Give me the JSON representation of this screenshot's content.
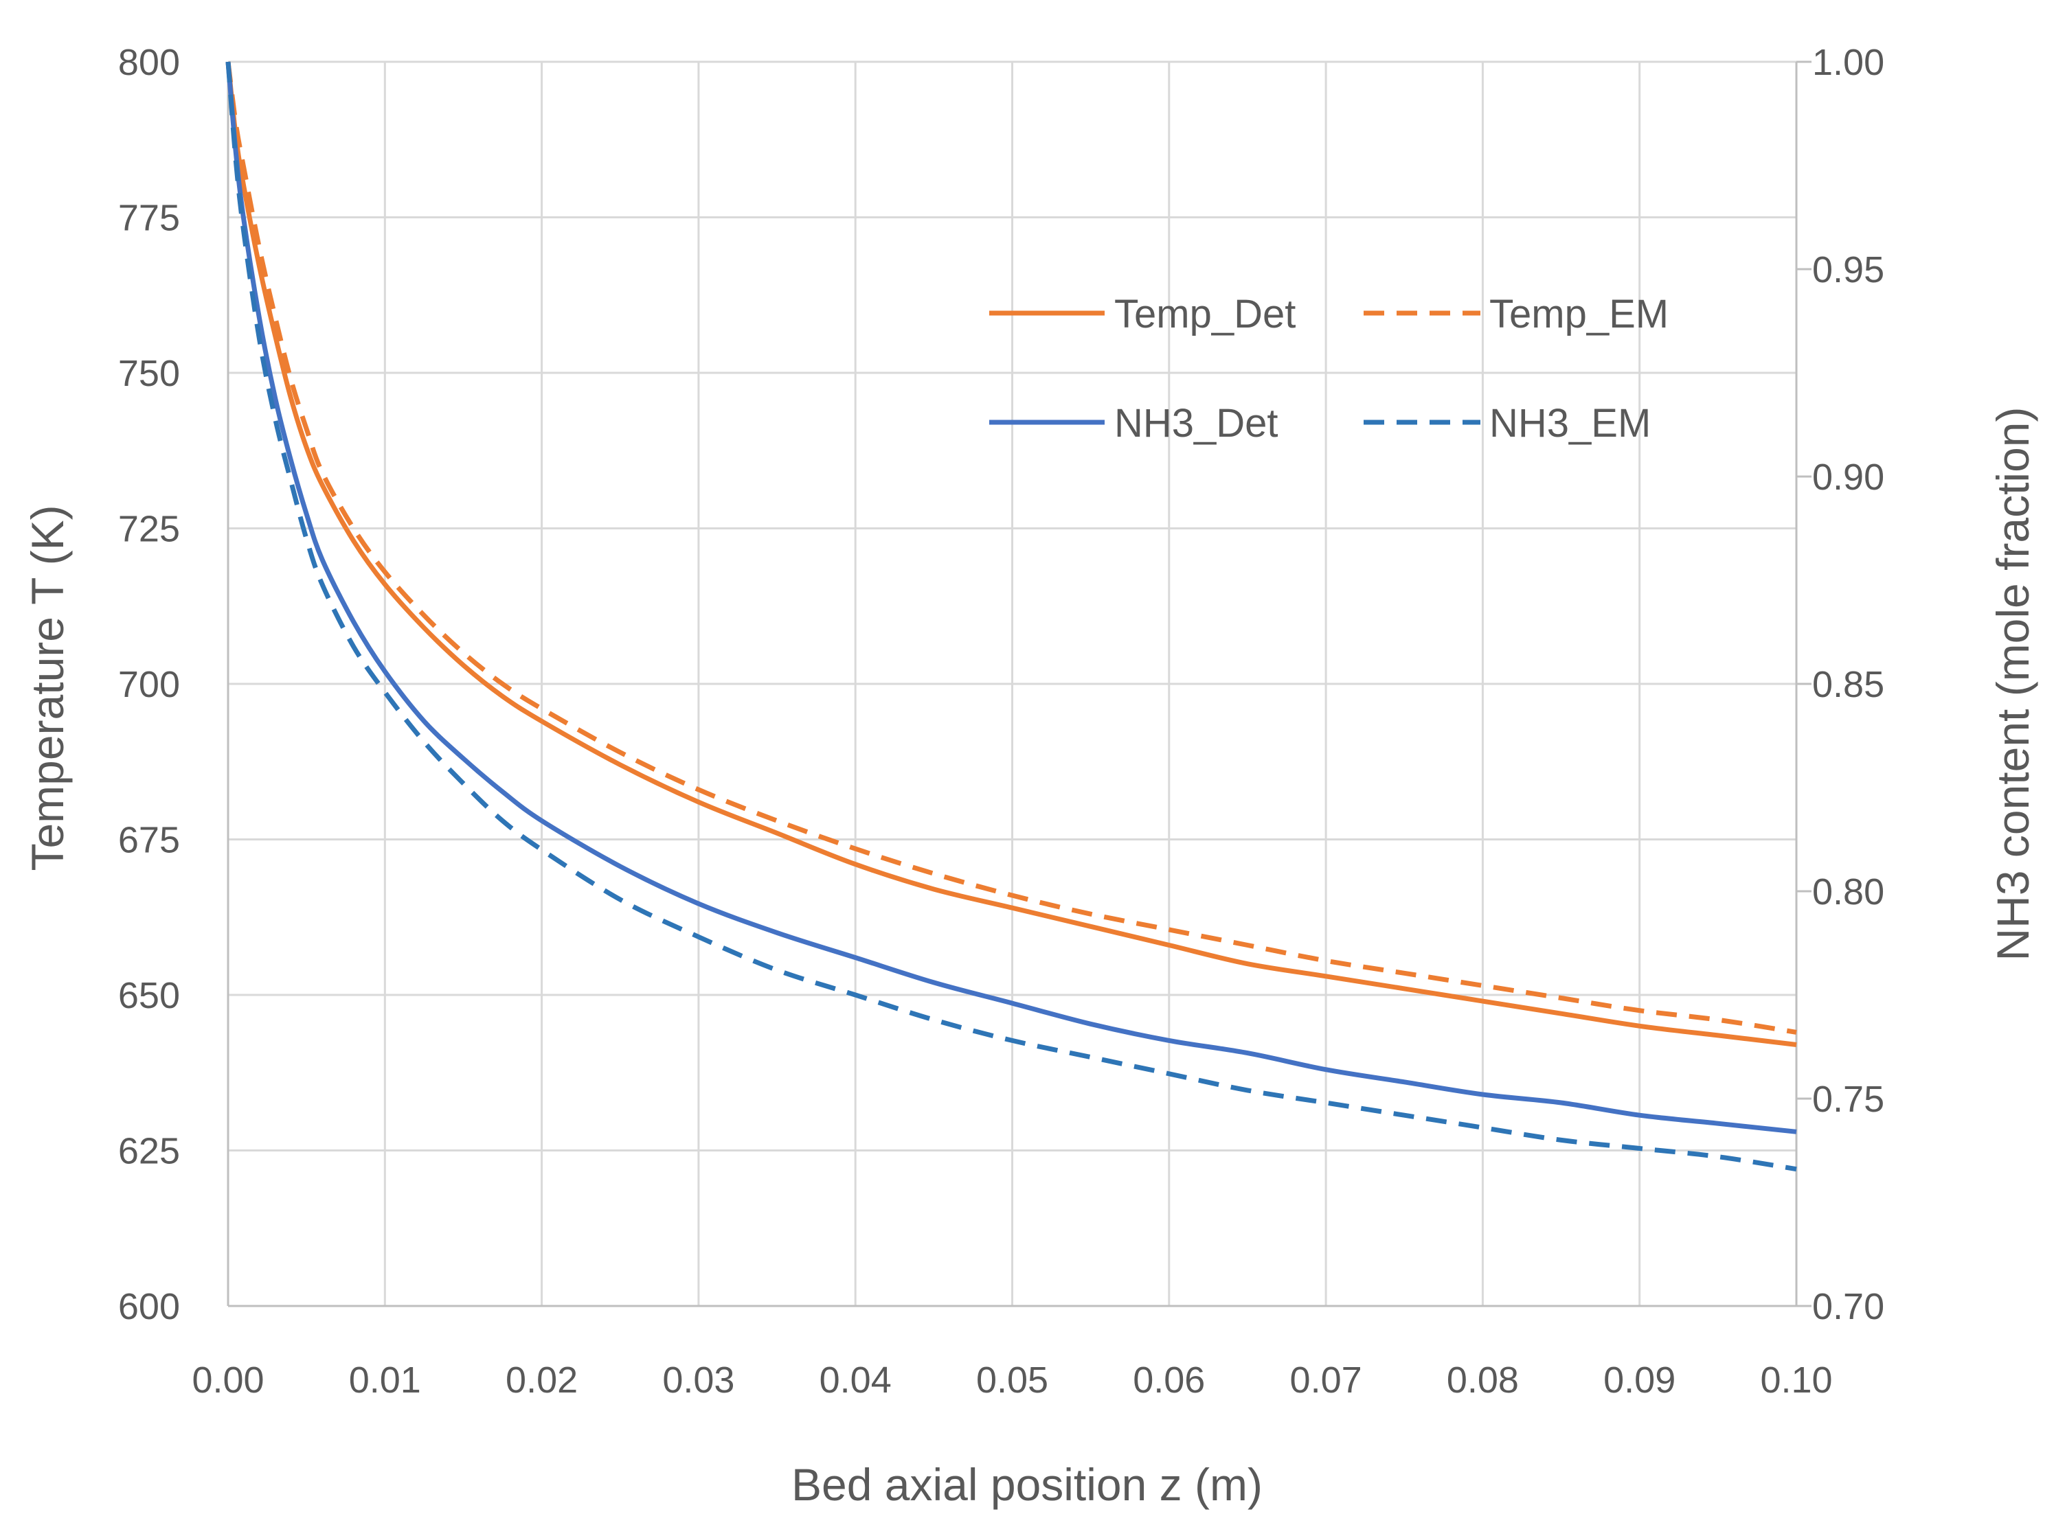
{
  "chart_data": {
    "type": "line",
    "title": "",
    "xlabel": "Bed axial position z (m)",
    "ylabel": "Temperature T (K)",
    "y2label": "NH3 content (mole fraction)",
    "xlim": [
      0,
      0.1
    ],
    "ylim": [
      600,
      800
    ],
    "y2lim": [
      0.7,
      1.0
    ],
    "x_ticks": [
      0,
      0.01,
      0.02,
      0.03,
      0.04,
      0.05,
      0.06,
      0.07,
      0.08,
      0.09,
      0.1
    ],
    "x_tick_labels": [
      "0.00",
      "0.01",
      "0.02",
      "0.03",
      "0.04",
      "0.05",
      "0.06",
      "0.07",
      "0.08",
      "0.09",
      "0.10"
    ],
    "y_ticks": [
      600,
      625,
      650,
      675,
      700,
      725,
      750,
      775,
      800
    ],
    "y_tick_labels": [
      "600",
      "625",
      "650",
      "675",
      "700",
      "725",
      "750",
      "775",
      "800"
    ],
    "y2_ticks": [
      0.7,
      0.75,
      0.8,
      0.85,
      0.9,
      0.95,
      1.0
    ],
    "y2_tick_labels": [
      "0.70",
      "0.75",
      "0.80",
      "0.85",
      "0.90",
      "0.95",
      "1.00"
    ],
    "grid": true,
    "legend_position": "top-right",
    "x": [
      0,
      0.0005,
      0.001,
      0.002,
      0.003,
      0.004,
      0.005,
      0.006,
      0.008,
      0.01,
      0.0125,
      0.015,
      0.0175,
      0.02,
      0.025,
      0.03,
      0.035,
      0.04,
      0.045,
      0.05,
      0.055,
      0.06,
      0.065,
      0.07,
      0.075,
      0.08,
      0.085,
      0.09,
      0.095,
      0.1
    ],
    "series": [
      {
        "name": "Temp_Det",
        "axis": "left",
        "color": "#ED7D31",
        "dash": "solid",
        "values": [
          800,
          788,
          780,
          767,
          756,
          746,
          738,
          732,
          723,
          716,
          709,
          703,
          698,
          694,
          687,
          681,
          676,
          671,
          667,
          664,
          661,
          658,
          655,
          653,
          651,
          649,
          647,
          645,
          643.5,
          642
        ]
      },
      {
        "name": "Temp_EM",
        "axis": "left",
        "color": "#ED7D31",
        "dash": "dashed",
        "values": [
          800,
          790,
          783,
          770,
          759,
          749,
          741,
          734,
          725,
          718,
          711,
          705,
          700,
          696,
          689,
          683,
          678,
          673.5,
          669.5,
          666,
          663,
          660.5,
          658,
          655.5,
          653.5,
          651.5,
          649.5,
          647.5,
          646,
          644
        ]
      },
      {
        "name": "NH3_Det",
        "axis": "right",
        "color": "#4472C4",
        "dash": "solid",
        "values": [
          1.0,
          0.978,
          0.962,
          0.938,
          0.919,
          0.904,
          0.891,
          0.88,
          0.865,
          0.853,
          0.841,
          0.832,
          0.824,
          0.817,
          0.806,
          0.797,
          0.79,
          0.784,
          0.778,
          0.773,
          0.768,
          0.764,
          0.761,
          0.757,
          0.754,
          0.751,
          0.749,
          0.746,
          0.744,
          0.742
        ]
      },
      {
        "name": "NH3_EM",
        "axis": "right",
        "color": "#2E75B6",
        "dash": "dashed",
        "values": [
          1.0,
          0.976,
          0.959,
          0.933,
          0.914,
          0.899,
          0.885,
          0.874,
          0.859,
          0.848,
          0.836,
          0.826,
          0.817,
          0.81,
          0.798,
          0.789,
          0.781,
          0.775,
          0.769,
          0.764,
          0.76,
          0.756,
          0.752,
          0.749,
          0.746,
          0.743,
          0.74,
          0.738,
          0.736,
          0.733
        ]
      }
    ]
  }
}
